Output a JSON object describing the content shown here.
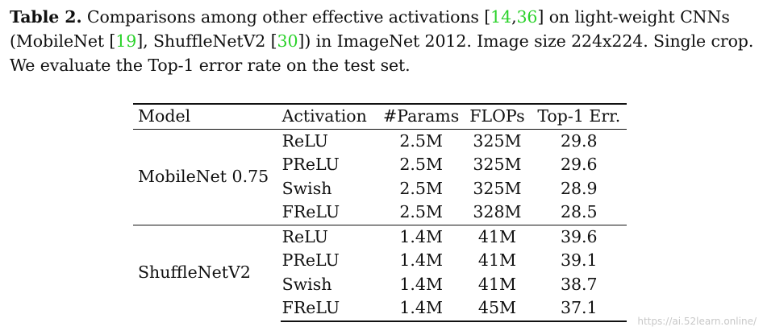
{
  "caption": {
    "label": "Table 2.",
    "p1": " Comparisons among other effective activations [",
    "cite1": "14",
    "sep1": ",",
    "cite2": "36",
    "p2": "] on light-weight CNNs (MobileNet [",
    "cite3": "19",
    "p3": "], ShuffleNetV2 [",
    "cite4": "30",
    "p4": "]) in ImageNet 2012. Image size 224x224. Single crop. We evaluate the Top-1 error rate on the test set."
  },
  "table": {
    "headers": [
      "Model",
      "Activation",
      "#Params",
      "FLOPs",
      "Top-1 Err."
    ],
    "groups": [
      {
        "model": "MobileNet 0.75",
        "rows": [
          {
            "activation": "ReLU",
            "params": "2.5M",
            "flops": "325M",
            "err": "29.8"
          },
          {
            "activation": "PReLU",
            "params": "2.5M",
            "flops": "325M",
            "err": "29.6"
          },
          {
            "activation": "Swish",
            "params": "2.5M",
            "flops": "325M",
            "err": "28.9"
          },
          {
            "activation": "FReLU",
            "params": "2.5M",
            "flops": "328M",
            "err": "28.5"
          }
        ]
      },
      {
        "model": "ShuffleNetV2",
        "rows": [
          {
            "activation": "ReLU",
            "params": "1.4M",
            "flops": "41M",
            "err": "39.6"
          },
          {
            "activation": "PReLU",
            "params": "1.4M",
            "flops": "41M",
            "err": "39.1"
          },
          {
            "activation": "Swish",
            "params": "1.4M",
            "flops": "41M",
            "err": "38.7"
          },
          {
            "activation": "FReLU",
            "params": "1.4M",
            "flops": "45M",
            "err": "37.1"
          }
        ]
      }
    ]
  },
  "watermark": "https://ai.52learn.online/"
}
